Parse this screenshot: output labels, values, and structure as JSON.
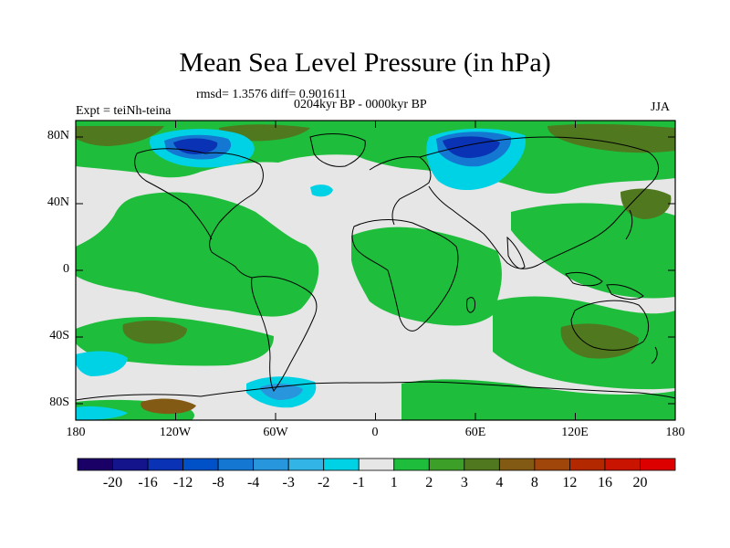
{
  "title": "Mean Sea Level Pressure (in hPa)",
  "stats": "rmsd= 1.3576 diff= 0.901611",
  "period": "0204kyr BP - 0000kyr BP",
  "experiment": "Expt = teiNh-teina",
  "season": "JJA",
  "axes": {
    "y_ticks": [
      "80N",
      "40N",
      "0",
      "40S",
      "80S"
    ],
    "x_ticks": [
      "180",
      "120W",
      "60W",
      "0",
      "60E",
      "120E",
      "180"
    ]
  },
  "colorbar": {
    "labels": [
      "-20",
      "-16",
      "-12",
      "-8",
      "-4",
      "-3",
      "-2",
      "-1",
      "1",
      "2",
      "3",
      "4",
      "8",
      "12",
      "16",
      "20"
    ],
    "colors": [
      "#1a0066",
      "#14148c",
      "#0a32b4",
      "#0050c8",
      "#1478d2",
      "#2896dc",
      "#32b4e6",
      "#00d2e6",
      "#e6e6e6",
      "#1ebe3c",
      "#3ca028",
      "#50781e",
      "#825a14",
      "#a0460a",
      "#b42800",
      "#c81400",
      "#dc0000"
    ]
  },
  "map": {
    "ocean_color": "#e6e6e6",
    "positive_color": "#1ebe3c",
    "strong_positive_color": "#3ca028",
    "very_strong_color": "#50781e",
    "negative_color": "#00d2e6",
    "strong_negative_color": "#1478d2",
    "deep_negative_color": "#0a32b4"
  }
}
